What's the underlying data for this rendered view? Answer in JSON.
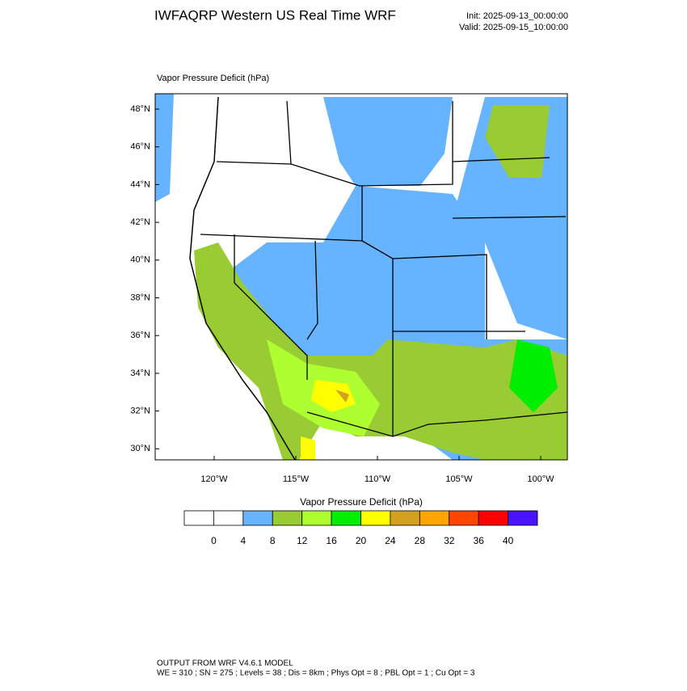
{
  "header": {
    "title": "IWFAQRP Western US Real Time WRF",
    "init": "Init: 2025-09-13_00:00:00",
    "valid": "Valid: 2025-09-15_10:00:00"
  },
  "map": {
    "title": "Vapor Pressure Deficit   (hPa)",
    "lat_labels": [
      "48°N",
      "46°N",
      "44°N",
      "42°N",
      "40°N",
      "38°N",
      "36°N",
      "34°N",
      "32°N",
      "30°N"
    ],
    "lon_labels": [
      "120°W",
      "115°W",
      "110°W",
      "105°W",
      "100°W"
    ]
  },
  "legend": {
    "title": "Vapor Pressure Deficit  (hPa)",
    "colors": [
      "#ffffff",
      "#ffffff",
      "#66b3ff",
      "#99cc33",
      "#adff2f",
      "#00ee00",
      "#ffff00",
      "#d4a020",
      "#ffa500",
      "#ff4500",
      "#ff0000",
      "#4b14ff"
    ],
    "labels": [
      "0",
      "4",
      "8",
      "12",
      "16",
      "20",
      "24",
      "28",
      "32",
      "36",
      "40"
    ]
  },
  "footer": {
    "line1": "OUTPUT FROM WRF V4.6.1 MODEL",
    "line2": "WE = 310 ; SN = 275 ; Levels = 38 ; Dis = 8km ; Phys Opt = 8 ; PBL Opt = 1 ; Cu Opt = 3"
  }
}
